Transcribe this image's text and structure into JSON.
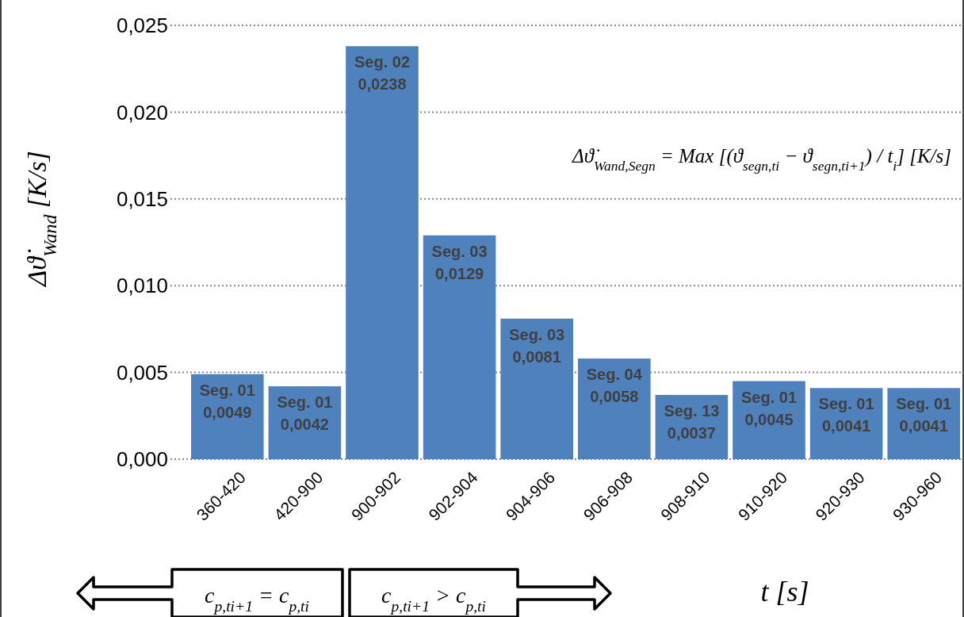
{
  "chart_data": {
    "type": "bar",
    "xlabel": "t [s]",
    "ylabel": "Δϑ̇$_{Wand}$ [K/s]",
    "categories": [
      "360-420",
      "420-900",
      "900-902",
      "902-904",
      "904-906",
      "906-908",
      "908-910",
      "910-920",
      "920-930",
      "930-960"
    ],
    "values": [
      0.0049,
      0.0042,
      0.0238,
      0.0129,
      0.0081,
      0.0058,
      0.0037,
      0.0045,
      0.0041,
      0.0041
    ],
    "value_labels": [
      "Seg. 01\n0,0049",
      "Seg. 01\n0,0042",
      "Seg. 02\n0,0238",
      "Seg. 03\n0,0129",
      "Seg. 03\n0,0081",
      "Seg. 04\n0,0058",
      "Seg. 13\n0,0037",
      "Seg. 01\n0,0045",
      "Seg. 01\n0,0041",
      "Seg. 01\n0,0041"
    ],
    "color": "#4f81bd",
    "ylim": [
      0,
      0.025
    ],
    "yticks": [
      {
        "value": 0,
        "label": "0,000"
      },
      {
        "value": 0.005,
        "label": "0,005"
      },
      {
        "value": 0.01,
        "label": "0,010"
      },
      {
        "value": 0.015,
        "label": "0,015"
      },
      {
        "value": 0.02,
        "label": "0,020"
      },
      {
        "value": 0.025,
        "label": "0,025"
      }
    ],
    "grid": "y",
    "annotations": [
      "Δϑ̇$_{Wand,Segn}$ = Max [(ϑ$_{segn,ti}$ − ϑ$_{segn,ti+1}$) / t$_{i}$] [K/s]",
      "c$_{p,ti+1}$ = c$_{p,ti}$",
      "c$_{p,ti+1}$ > c$_{p,ti}$"
    ]
  }
}
